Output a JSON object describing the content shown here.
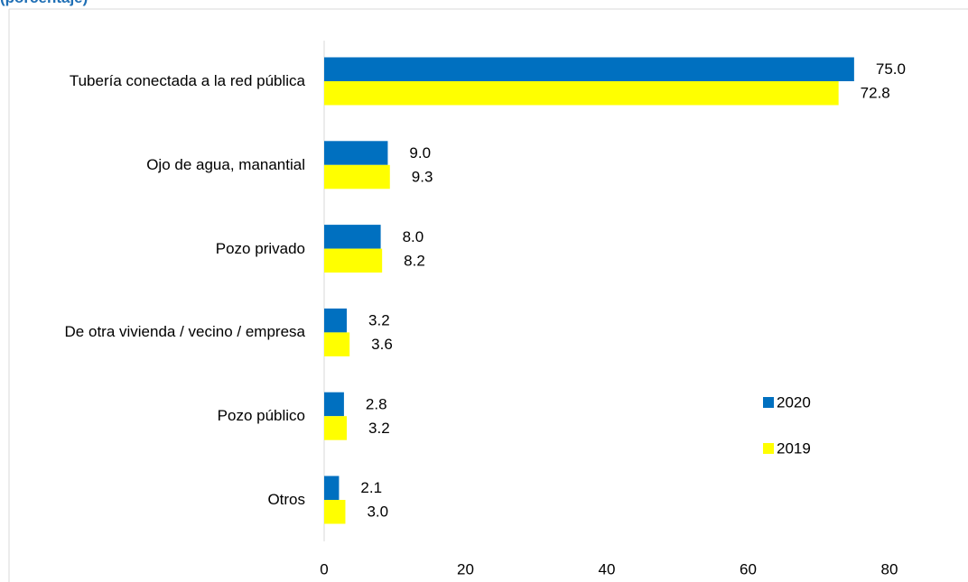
{
  "chart_data": {
    "type": "bar",
    "orientation": "horizontal",
    "subtitle": "(porcentaje)",
    "categories": [
      "Tubería conectada a la red pública",
      "Ojo de agua, manantial",
      "Pozo privado",
      "De otra vivienda / vecino / empresa",
      "Pozo público",
      "Otros"
    ],
    "series": [
      {
        "name": "2020",
        "color": "#0070c0",
        "values": [
          75.0,
          9.0,
          8.0,
          3.2,
          2.8,
          2.1
        ],
        "value_labels": [
          "75.0",
          "9.0",
          "8.0",
          "3.2",
          "2.8",
          "2.1"
        ]
      },
      {
        "name": "2019",
        "color": "#ffff00",
        "values": [
          72.8,
          9.3,
          8.2,
          3.6,
          3.2,
          3.0
        ],
        "value_labels": [
          "72.8",
          "9.3",
          "8.2",
          "3.6",
          "3.2",
          "3.0"
        ]
      }
    ],
    "xlim": [
      0,
      80
    ],
    "xticks": [
      0,
      20,
      40,
      60,
      80
    ],
    "grid": false,
    "legend": "right"
  }
}
